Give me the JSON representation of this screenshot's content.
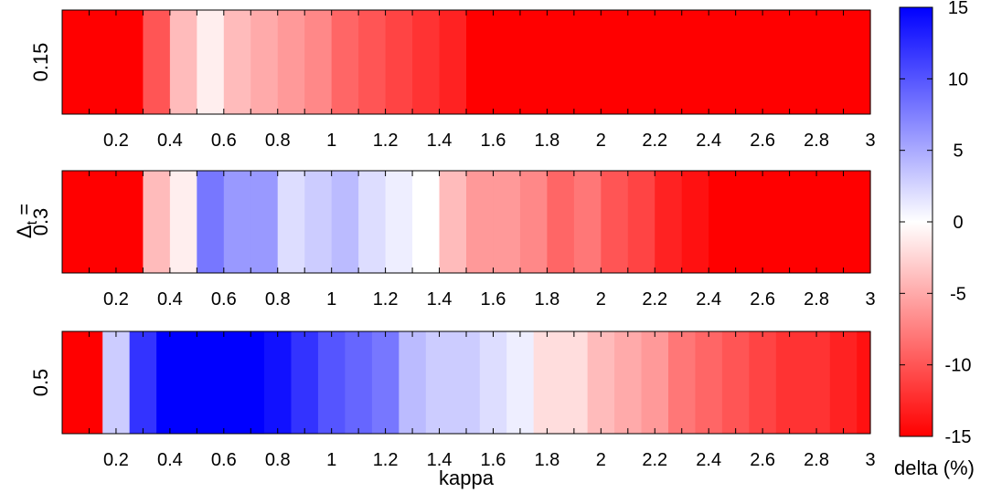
{
  "chart_data": {
    "type": "heatmap",
    "xlabel": "kappa",
    "ylabel_main": "Δ",
    "ylabel_sub": "t",
    "ylabel_eq": "=",
    "x_ticks": [
      0.2,
      0.4,
      0.6,
      0.8,
      1,
      1.2,
      1.4,
      1.6,
      1.8,
      2,
      2.2,
      2.4,
      2.6,
      2.8,
      3
    ],
    "x_tick_labels": [
      "0.2",
      "0.4",
      "0.6",
      "0.8",
      "1",
      "1.2",
      "1.4",
      "1.6",
      "1.8",
      "2",
      "2.2",
      "2.4",
      "2.6",
      "2.8",
      "3"
    ],
    "colorbar": {
      "label": "delta (%)",
      "range": [
        -15,
        15
      ],
      "ticks": [
        15,
        10,
        5,
        0,
        -5,
        -10,
        -15
      ],
      "tick_labels": [
        "15",
        "10",
        "5",
        "0",
        "-5",
        "-10",
        "-15"
      ],
      "colormap": [
        "#ff0000",
        "#ffffff",
        "#0000ff"
      ]
    },
    "rows": [
      {
        "label": "0.15",
        "x_start": 0.1,
        "x_step": 0.1,
        "values": [
          -15,
          -15,
          -10,
          -4,
          -1,
          -4,
          -5,
          -6,
          -7,
          -9,
          -10,
          -11,
          -12,
          -13,
          -15,
          -15,
          -15,
          -15,
          -15,
          -15,
          -15,
          -15,
          -15,
          -15,
          -15,
          -15,
          -15,
          -15,
          -15,
          -15
        ]
      },
      {
        "label": "0.3",
        "x_start": 0.1,
        "x_step": 0.1,
        "values": [
          -15,
          -15,
          -4,
          -1,
          8,
          6,
          6,
          2,
          3,
          4,
          2,
          1,
          0,
          -4,
          -6,
          -6,
          -7,
          -9,
          -8,
          -10,
          -11,
          -13,
          -14,
          -15,
          -15,
          -15,
          -15,
          -15,
          -15,
          -15
        ]
      },
      {
        "label": "0.5",
        "x_start": 0.05,
        "x_step": 0.1,
        "values": [
          -15,
          3,
          12,
          15,
          15,
          15,
          15,
          14,
          12,
          10,
          9,
          8,
          4,
          3,
          3,
          2,
          1,
          -2,
          -2,
          -4,
          -5,
          -6,
          -8,
          -9,
          -10,
          -11,
          -12,
          -12,
          -13,
          -14
        ]
      }
    ]
  }
}
